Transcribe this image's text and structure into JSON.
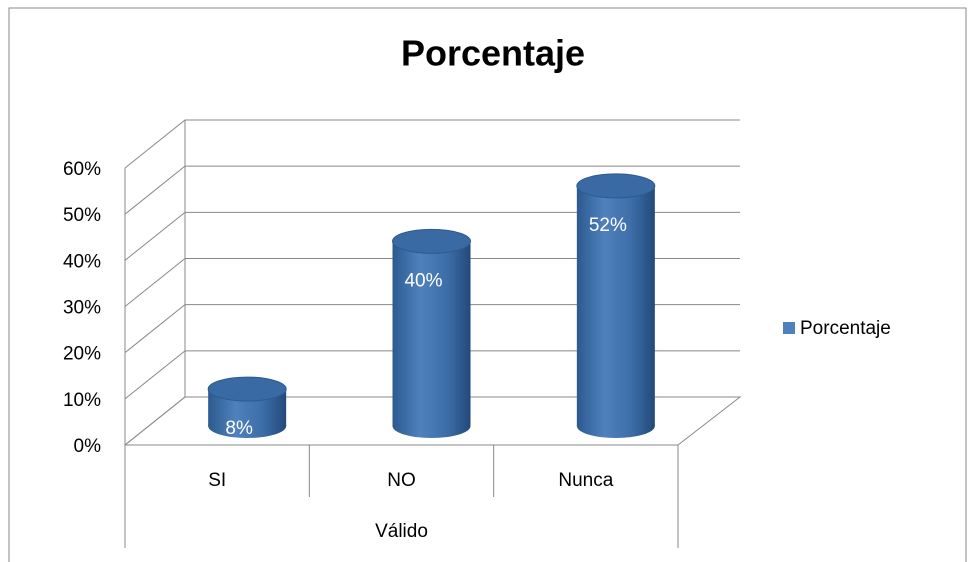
{
  "chart_data": {
    "type": "bar3d",
    "title": "Porcentaje",
    "categories": [
      "SI",
      "NO",
      "Nunca"
    ],
    "group_label": "Válido",
    "series": [
      {
        "name": "Porcentaje",
        "color": "#4f81bd",
        "values": [
          8,
          40,
          52
        ],
        "value_labels": [
          "8%",
          "40%",
          "52%"
        ]
      }
    ],
    "ylim": [
      0,
      60
    ],
    "yticks": [
      {
        "value": 0,
        "label": "0%"
      },
      {
        "value": 10,
        "label": "10%"
      },
      {
        "value": 20,
        "label": "20%"
      },
      {
        "value": 30,
        "label": "30%"
      },
      {
        "value": 40,
        "label": "40%"
      },
      {
        "value": 50,
        "label": "50%"
      },
      {
        "value": 60,
        "label": "60%"
      }
    ],
    "grid": true,
    "legend": "right"
  }
}
